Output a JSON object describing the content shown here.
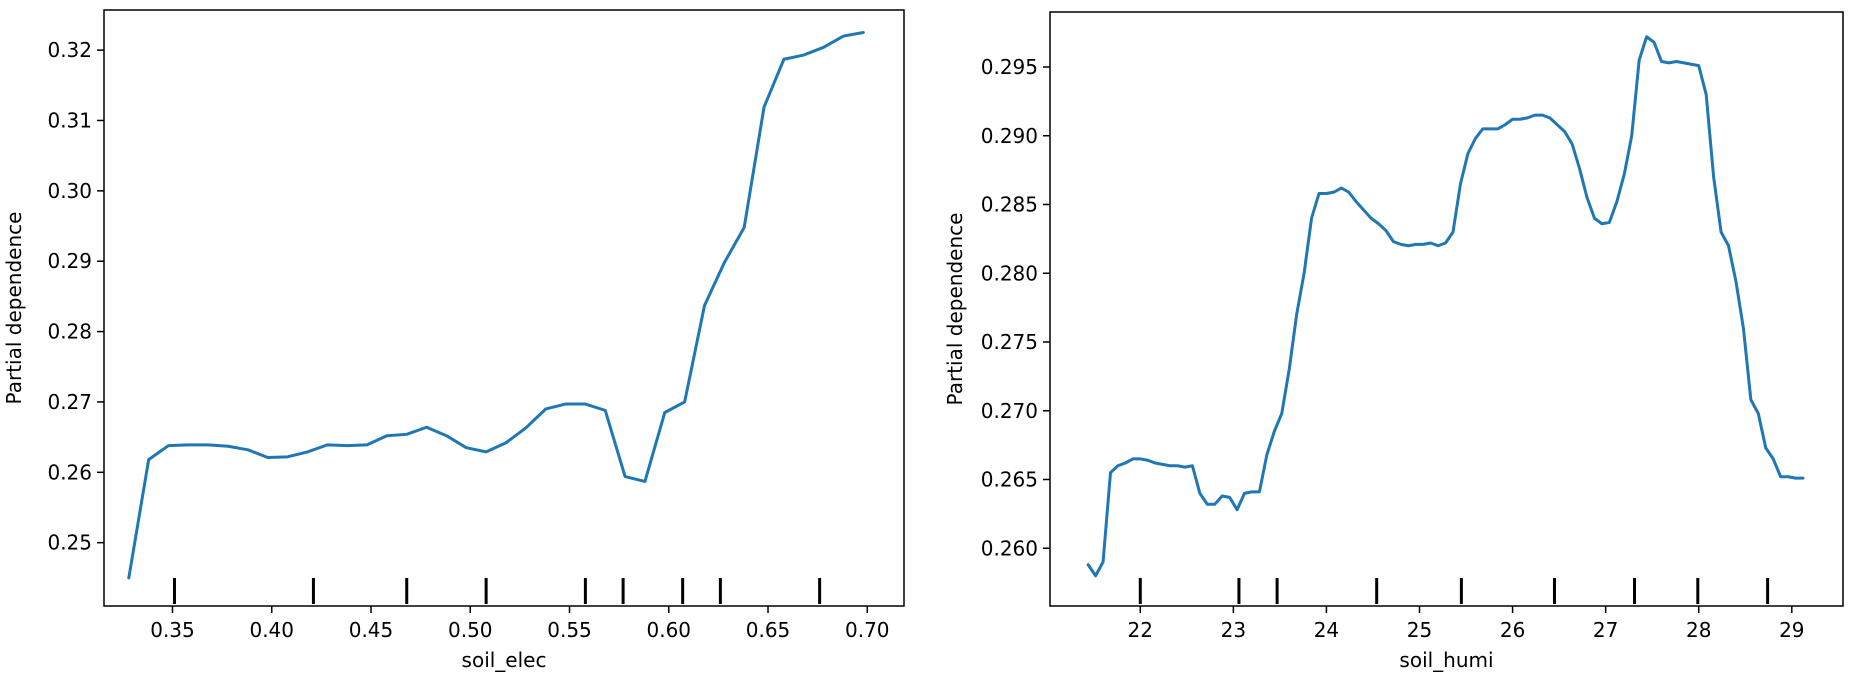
{
  "chart_data": [
    {
      "type": "line",
      "xlabel": "soil_elec",
      "ylabel": "Partial dependence",
      "xlim": [
        0.3155,
        0.7185
      ],
      "ylim": [
        0.241,
        0.3257
      ],
      "xticks": [
        0.35,
        0.4,
        0.45,
        0.5,
        0.55,
        0.6,
        0.65,
        0.7
      ],
      "xtick_labels": [
        "0.35",
        "0.40",
        "0.45",
        "0.50",
        "0.55",
        "0.60",
        "0.65",
        "0.70"
      ],
      "yticks": [
        0.25,
        0.26,
        0.27,
        0.28,
        0.29,
        0.3,
        0.31,
        0.32
      ],
      "ytick_labels": [
        "0.25",
        "0.26",
        "0.27",
        "0.28",
        "0.29",
        "0.30",
        "0.31",
        "0.32"
      ],
      "deciles": [
        0.351,
        0.421,
        0.468,
        0.508,
        0.558,
        0.577,
        0.607,
        0.626,
        0.676
      ],
      "line_color": "#1f77b4",
      "series": [
        {
          "x": [
            0.328,
            0.338,
            0.348,
            0.358,
            0.368,
            0.378,
            0.388,
            0.398,
            0.408,
            0.418,
            0.428,
            0.438,
            0.448,
            0.458,
            0.468,
            0.478,
            0.488,
            0.498,
            0.508,
            0.518,
            0.528,
            0.538,
            0.548,
            0.558,
            0.568,
            0.578,
            0.588,
            0.598,
            0.608,
            0.618,
            0.628,
            0.638,
            0.648,
            0.658,
            0.668,
            0.678,
            0.688,
            0.698
          ],
          "y": [
            0.245,
            0.2618,
            0.2638,
            0.2639,
            0.2639,
            0.2637,
            0.2632,
            0.2621,
            0.2622,
            0.2629,
            0.2639,
            0.2638,
            0.2639,
            0.2652,
            0.2654,
            0.2664,
            0.2652,
            0.2635,
            0.2629,
            0.2642,
            0.2663,
            0.269,
            0.2697,
            0.2697,
            0.2688,
            0.2594,
            0.2587,
            0.2685,
            0.27,
            0.2837,
            0.2898,
            0.2948,
            0.3119,
            0.3187,
            0.3193,
            0.3204,
            0.322,
            0.3225
          ]
        }
      ]
    },
    {
      "type": "line",
      "xlabel": "soil_humi",
      "ylabel": "Partial dependence",
      "xlim": [
        21.03,
        29.55
      ],
      "ylim": [
        0.2558,
        0.299
      ],
      "xticks": [
        22,
        23,
        24,
        25,
        26,
        27,
        28,
        29
      ],
      "xtick_labels": [
        "22",
        "23",
        "24",
        "25",
        "26",
        "27",
        "28",
        "29"
      ],
      "yticks": [
        0.26,
        0.265,
        0.27,
        0.275,
        0.28,
        0.285,
        0.29,
        0.295
      ],
      "ytick_labels": [
        "0.260",
        "0.265",
        "0.270",
        "0.275",
        "0.280",
        "0.285",
        "0.290",
        "0.295"
      ],
      "deciles": [
        22.0,
        23.06,
        23.47,
        24.54,
        25.45,
        26.45,
        27.31,
        27.99,
        28.74
      ],
      "line_color": "#1f77b4",
      "series": [
        {
          "x": [
            21.44,
            21.52,
            21.6,
            21.68,
            21.76,
            21.84,
            21.92,
            22.0,
            22.08,
            22.16,
            22.24,
            22.32,
            22.4,
            22.48,
            22.56,
            22.64,
            22.72,
            22.8,
            22.88,
            22.96,
            23.04,
            23.12,
            23.2,
            23.28,
            23.36,
            23.44,
            23.52,
            23.6,
            23.68,
            23.76,
            23.84,
            23.92,
            24.0,
            24.08,
            24.16,
            24.24,
            24.32,
            24.4,
            24.48,
            24.56,
            24.64,
            24.72,
            24.8,
            24.88,
            24.96,
            25.04,
            25.12,
            25.2,
            25.28,
            25.36,
            25.44,
            25.52,
            25.6,
            25.68,
            25.76,
            25.84,
            25.92,
            26.0,
            26.08,
            26.16,
            26.24,
            26.32,
            26.4,
            26.48,
            26.56,
            26.64,
            26.72,
            26.8,
            26.88,
            26.96,
            27.04,
            27.12,
            27.2,
            27.28,
            27.36,
            27.44,
            27.52,
            27.6,
            27.68,
            27.76,
            27.84,
            27.92,
            28.0,
            28.08,
            28.16,
            28.24,
            28.32,
            28.4,
            28.48,
            28.56,
            28.64,
            28.72,
            28.8,
            28.88,
            28.96,
            29.04,
            29.12
          ],
          "y": [
            0.2588,
            0.258,
            0.259,
            0.2655,
            0.266,
            0.2662,
            0.2665,
            0.2665,
            0.2664,
            0.2662,
            0.2661,
            0.266,
            0.266,
            0.2659,
            0.266,
            0.264,
            0.2632,
            0.2632,
            0.2638,
            0.2637,
            0.2628,
            0.264,
            0.2641,
            0.2641,
            0.2668,
            0.2685,
            0.2698,
            0.273,
            0.277,
            0.28,
            0.284,
            0.2858,
            0.2858,
            0.2859,
            0.2862,
            0.2859,
            0.2852,
            0.2846,
            0.284,
            0.2836,
            0.2831,
            0.2823,
            0.2821,
            0.282,
            0.2821,
            0.2821,
            0.2822,
            0.282,
            0.2822,
            0.283,
            0.2865,
            0.2887,
            0.2898,
            0.2905,
            0.2905,
            0.2905,
            0.2908,
            0.2912,
            0.2912,
            0.2913,
            0.2915,
            0.2915,
            0.2913,
            0.2908,
            0.2903,
            0.2894,
            0.2876,
            0.2855,
            0.284,
            0.2836,
            0.2837,
            0.2852,
            0.2872,
            0.29,
            0.2955,
            0.2972,
            0.2968,
            0.2954,
            0.2953,
            0.2954,
            0.2953,
            0.2952,
            0.2951,
            0.293,
            0.287,
            0.283,
            0.282,
            0.2794,
            0.276,
            0.2708,
            0.2698,
            0.2673,
            0.2665,
            0.2652,
            0.2652,
            0.2651,
            0.2651
          ]
        }
      ]
    }
  ]
}
